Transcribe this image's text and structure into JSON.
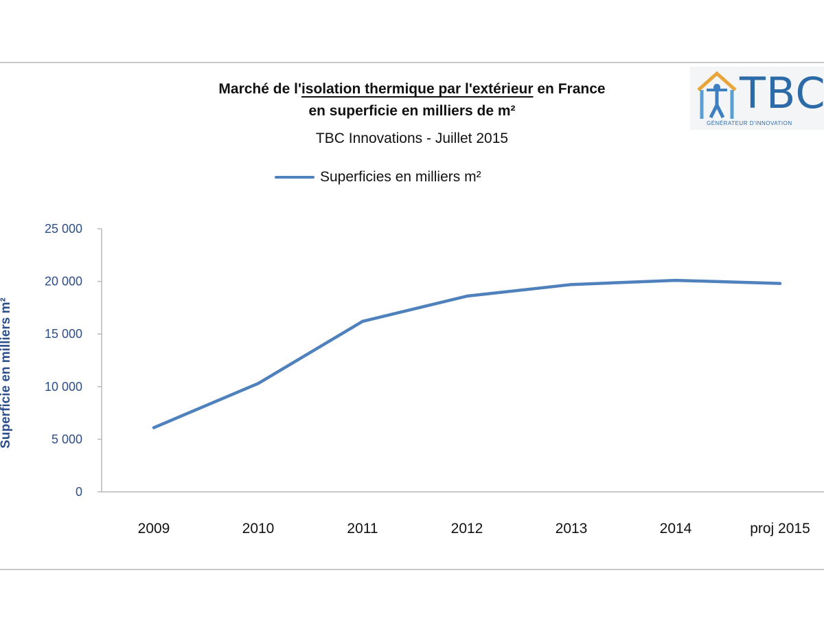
{
  "title": {
    "line1_prefix": "Marché de l'",
    "line1_underlined": "isolation  thermique par l'extérieur",
    "line1_suffix": " en France",
    "line2": "en superficie  en milliers de m²",
    "line3": "TBC Innovations - Juillet 2015"
  },
  "logo": {
    "text": "TBC",
    "tagline": "GÉNÉRATEUR D'INNOVATION",
    "icon": "house-person-icon"
  },
  "colors": {
    "series": "#4f81bd",
    "axis_text": "#2c4e8a",
    "logo": "#2c6aa8"
  },
  "chart_data": {
    "type": "line",
    "categories": [
      "2009",
      "2010",
      "2011",
      "2012",
      "2013",
      "2014",
      "proj 2015"
    ],
    "series": [
      {
        "name": "Superficies en milliers m²",
        "values": [
          6100,
          10300,
          16200,
          18600,
          19700,
          20100,
          19800
        ]
      }
    ],
    "ylabel": "Superficie en milliers m²",
    "xlabel": "",
    "yticks": [
      "0",
      "5 000",
      "10 000",
      "15 000",
      "20 000",
      "25 000"
    ],
    "ylim": [
      0,
      25000
    ],
    "grid": false,
    "legend": "top"
  }
}
